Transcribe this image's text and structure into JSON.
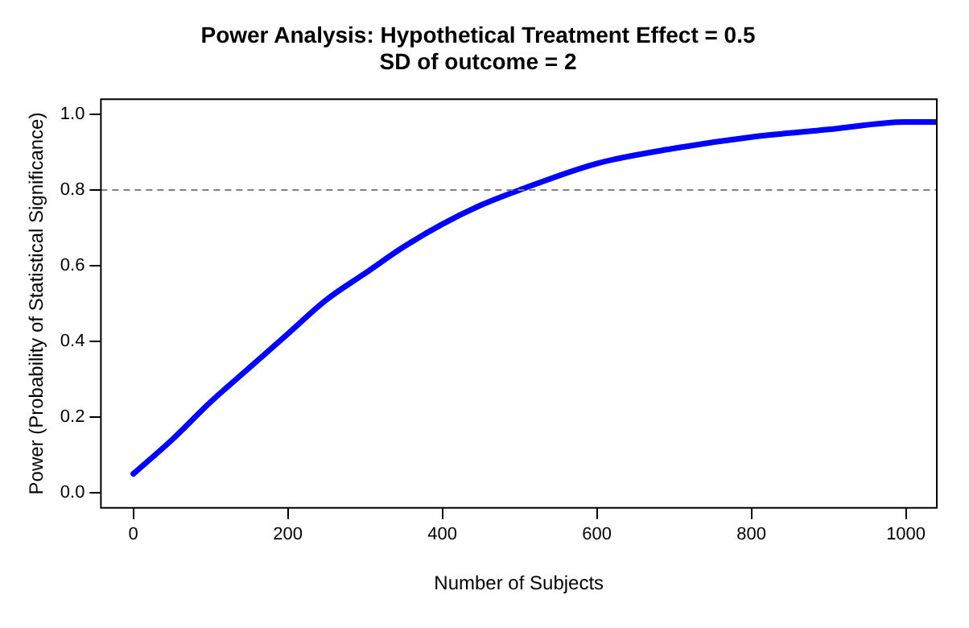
{
  "chart_data": {
    "type": "line",
    "title": "Power Analysis: Hypothetical Treatment Effect = 0.5\nSD of outcome = 2",
    "xlabel": "Number of Subjects",
    "ylabel": "Power (Probability of Statistical Significance)",
    "x": [
      0,
      50,
      100,
      150,
      200,
      250,
      300,
      350,
      400,
      450,
      500,
      600,
      700,
      800,
      900,
      1000,
      1040
    ],
    "series": [
      {
        "color": "#0000ff",
        "values": [
          0.05,
          0.14,
          0.24,
          0.33,
          0.42,
          0.51,
          0.58,
          0.65,
          0.71,
          0.76,
          0.8,
          0.87,
          0.91,
          0.94,
          0.96,
          0.98,
          0.98
        ]
      }
    ],
    "xlim": [
      -42,
      1040
    ],
    "xticks": [
      0,
      200,
      400,
      600,
      800,
      1000
    ],
    "ylim": [
      -0.04,
      1.04
    ],
    "yticks": [
      {
        "value": 0,
        "label": "0.0"
      },
      {
        "value": 0.2,
        "label": "0.2"
      },
      {
        "value": 0.4,
        "label": "0.4"
      },
      {
        "value": 0.6,
        "label": "0.6"
      },
      {
        "value": 0.8,
        "label": "0.8"
      },
      {
        "value": 1,
        "label": "1.0"
      }
    ],
    "ref_lines": [
      {
        "axis": "y",
        "value": 0.8,
        "color": "#808080",
        "line_style": "dashed"
      }
    ],
    "grid": false,
    "legend": false,
    "marker": "none",
    "line_style": "solid"
  }
}
